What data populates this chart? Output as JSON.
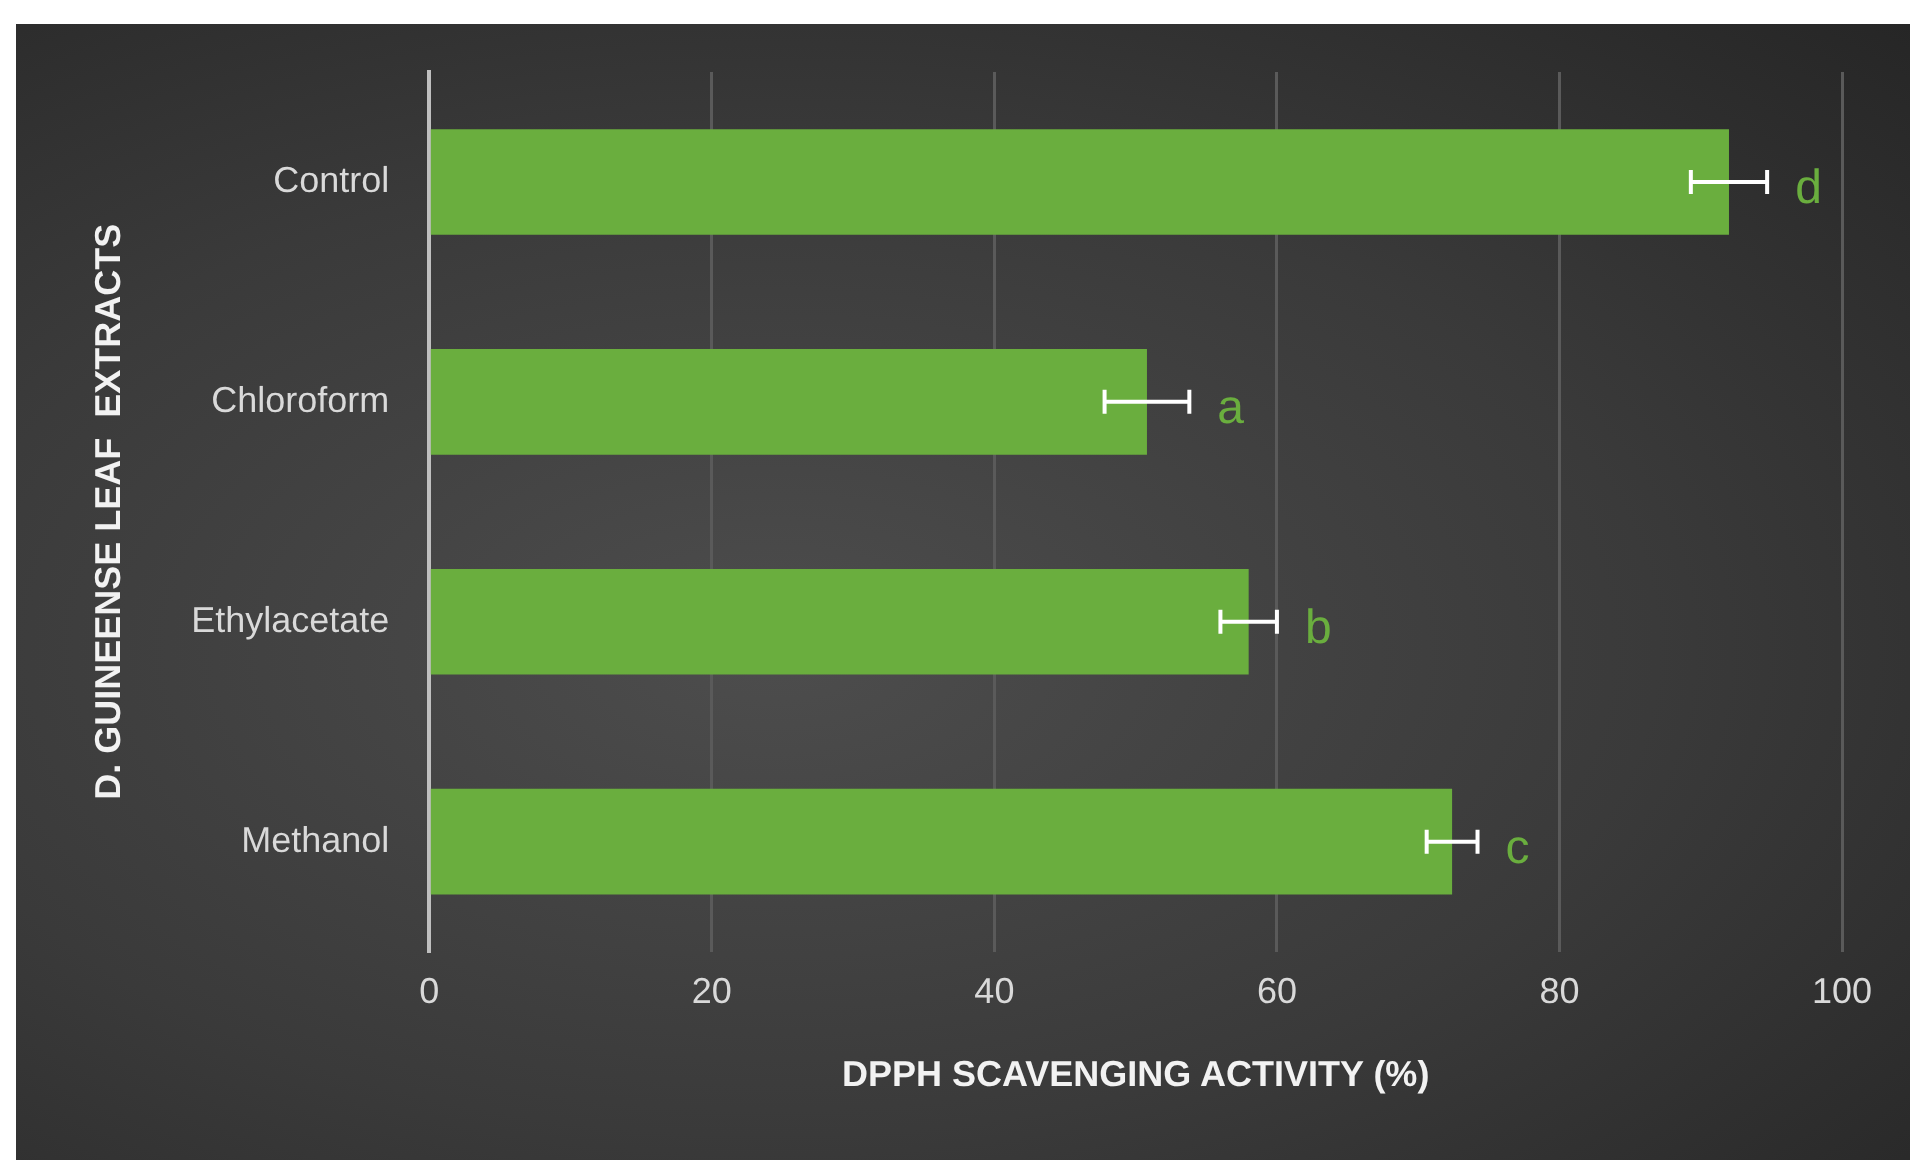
{
  "chart_data": {
    "type": "bar",
    "orientation": "horizontal",
    "xlabel": "DPPH SCAVENGING ACTIVITY (%)",
    "ylabel": "D. GUINEENSE LEAF  EXTRACTS",
    "categories": [
      "Control",
      "Chloroform",
      "Ethylacetate",
      "Methanol"
    ],
    "values": [
      92.0,
      50.8,
      58.0,
      72.4
    ],
    "errors": [
      2.7,
      3.0,
      2.0,
      1.8
    ],
    "color": "#6aae3e",
    "xlim": [
      0,
      100
    ],
    "xticks": [
      0,
      20,
      40,
      60,
      80,
      100
    ],
    "grid": "x",
    "annotations": [
      "d",
      "a",
      "b",
      "c"
    ]
  }
}
